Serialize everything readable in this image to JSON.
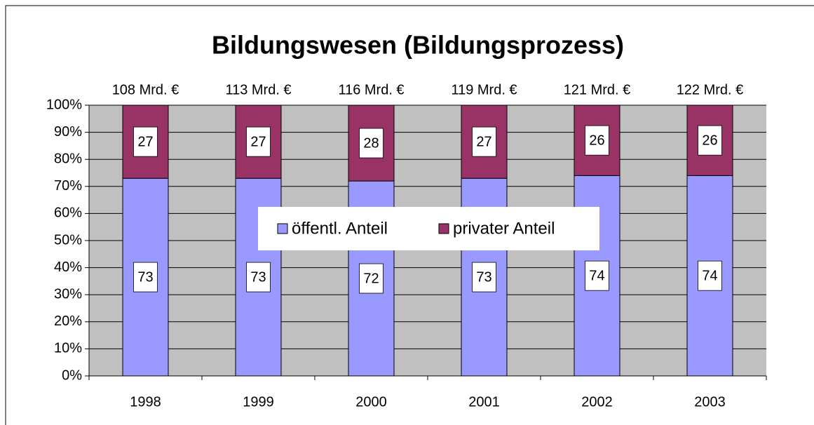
{
  "chart_data": {
    "type": "stacked_bar",
    "title": "Bildungswesen (Bildungsprozess)",
    "categories": [
      "1998",
      "1999",
      "2000",
      "2001",
      "2002",
      "2003"
    ],
    "annotations": [
      "108 Mrd. €",
      "113 Mrd. €",
      "116 Mrd. €",
      "119 Mrd. €",
      "121 Mrd. €",
      "122 Mrd. €"
    ],
    "series": [
      {
        "name": "öffentl. Anteil",
        "color": "#9999ff",
        "values": [
          73,
          73,
          72,
          73,
          74,
          74
        ]
      },
      {
        "name": "privater Anteil",
        "color": "#993366",
        "values": [
          27,
          27,
          28,
          27,
          26,
          26
        ]
      }
    ],
    "ylim": [
      0,
      100
    ],
    "yticks": [
      {
        "value": 0,
        "label": "0%"
      },
      {
        "value": 10,
        "label": "10%"
      },
      {
        "value": 20,
        "label": "20%"
      },
      {
        "value": 30,
        "label": "30%"
      },
      {
        "value": 40,
        "label": "40%"
      },
      {
        "value": 50,
        "label": "50%"
      },
      {
        "value": 60,
        "label": "60%"
      },
      {
        "value": 70,
        "label": "70%"
      },
      {
        "value": 80,
        "label": "80%"
      },
      {
        "value": 90,
        "label": "90%"
      },
      {
        "value": 100,
        "label": "100%"
      }
    ],
    "grid": true,
    "plot_background": "#c0c0c0"
  }
}
